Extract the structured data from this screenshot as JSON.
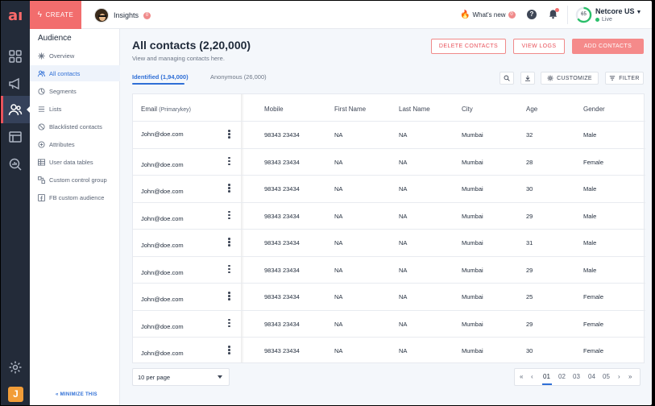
{
  "rail": {
    "logo": "aı",
    "avatar_letter": "J",
    "icons": [
      "dashboard-icon",
      "megaphone-icon",
      "audience-icon",
      "template-icon",
      "analytics-icon",
      "settings-icon"
    ]
  },
  "topbar": {
    "create_label": "CREATE",
    "insights_label": "Insights",
    "insights_count": "0",
    "whatsnew_label": "What's new",
    "whatsnew_count": "0",
    "score": "65",
    "org_name": "Netcore US",
    "status": "Live",
    "colors": {
      "create": "#f26d6d",
      "live": "#2bbf6a",
      "score_ring": "#2bbf6a"
    }
  },
  "sidebar": {
    "title": "Audience",
    "items": [
      {
        "label": "Overview",
        "icon": "overview-icon"
      },
      {
        "label": "All contacts",
        "icon": "contacts-icon",
        "active": true
      },
      {
        "label": "Segments",
        "icon": "segments-icon"
      },
      {
        "label": "Lists",
        "icon": "list-icon"
      },
      {
        "label": "Blacklisted contacts",
        "icon": "blocked-icon"
      },
      {
        "label": "Attributes",
        "icon": "attributes-icon"
      },
      {
        "label": "User data tables",
        "icon": "table-icon"
      },
      {
        "label": "Custom control group",
        "icon": "group-icon"
      },
      {
        "label": "FB custom audience",
        "icon": "facebook-icon"
      }
    ],
    "minimize_label": "« MINIMIZE THIS"
  },
  "main": {
    "title": "All contacts (2,20,000)",
    "subtitle": "View and managing contacts here.",
    "delete_label": "DELETE CONTACTS",
    "logs_label": "VIEW LOGS",
    "add_label": "ADD CONTACTS",
    "tabs": [
      {
        "label": "Identified (1,94,000)",
        "active": true
      },
      {
        "label": "Anonymous (26,000)",
        "active": false
      }
    ],
    "customize_label": "CUSTOMIZE",
    "filter_label": "FILTER"
  },
  "table": {
    "email_header": "Email",
    "email_header_note": "(Primarykey)",
    "columns": [
      "Mobile",
      "First Name",
      "Last Name",
      "City",
      "Age",
      "Gender"
    ],
    "rows": [
      {
        "email": "John@doe.com",
        "mobile": "98343 23434",
        "first": "NA",
        "last": "NA",
        "city": "Mumbai",
        "age": "32",
        "gender": "Male"
      },
      {
        "email": "John@doe.com",
        "mobile": "98343 23434",
        "first": "NA",
        "last": "NA",
        "city": "Mumbai",
        "age": "28",
        "gender": "Female"
      },
      {
        "email": "John@doe.com",
        "mobile": "98343 23434",
        "first": "NA",
        "last": "NA",
        "city": "Mumbai",
        "age": "30",
        "gender": "Male"
      },
      {
        "email": "John@doe.com",
        "mobile": "98343 23434",
        "first": "NA",
        "last": "NA",
        "city": "Mumbai",
        "age": "29",
        "gender": "Male"
      },
      {
        "email": "John@doe.com",
        "mobile": "98343 23434",
        "first": "NA",
        "last": "NA",
        "city": "Mumbai",
        "age": "31",
        "gender": "Male"
      },
      {
        "email": "John@doe.com",
        "mobile": "98343 23434",
        "first": "NA",
        "last": "NA",
        "city": "Mumbai",
        "age": "29",
        "gender": "Male"
      },
      {
        "email": "John@doe.com",
        "mobile": "98343 23434",
        "first": "NA",
        "last": "NA",
        "city": "Mumbai",
        "age": "25",
        "gender": "Female"
      },
      {
        "email": "John@doe.com",
        "mobile": "98343 23434",
        "first": "NA",
        "last": "NA",
        "city": "Mumbai",
        "age": "29",
        "gender": "Female"
      },
      {
        "email": "John@doe.com",
        "mobile": "98343 23434",
        "first": "NA",
        "last": "NA",
        "city": "Mumbai",
        "age": "30",
        "gender": "Female"
      }
    ]
  },
  "pagination": {
    "per_page": "10 per page",
    "first": "«",
    "prev": "‹",
    "pages": [
      "01",
      "02",
      "03",
      "04",
      "05"
    ],
    "current": "01",
    "next": "›",
    "last": "»"
  }
}
